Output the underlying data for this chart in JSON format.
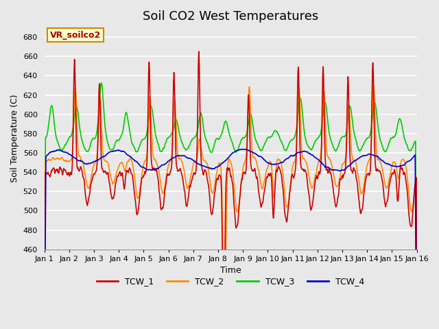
{
  "title": "Soil CO2 West Temperatures",
  "xlabel": "Time",
  "ylabel": "Soil Temperature (C)",
  "annotation": "VR_soilco2",
  "ylim": [
    460,
    690
  ],
  "yticks": [
    460,
    480,
    500,
    520,
    540,
    560,
    580,
    600,
    620,
    640,
    660,
    680
  ],
  "days": 15,
  "series_colors": {
    "TCW_1": "#cc0000",
    "TCW_2": "#ff8800",
    "TCW_3": "#00cc00",
    "TCW_4": "#0000cc"
  },
  "background_color": "#e8e8e8",
  "plot_bg": "#e8e8e8",
  "annotation_box_color": "#ffffcc",
  "annotation_text_color": "#aa0000",
  "annotation_border_color": "#cc8800",
  "grid_color": "white",
  "title_fontsize": 13,
  "tick_fontsize": 8,
  "label_fontsize": 9
}
